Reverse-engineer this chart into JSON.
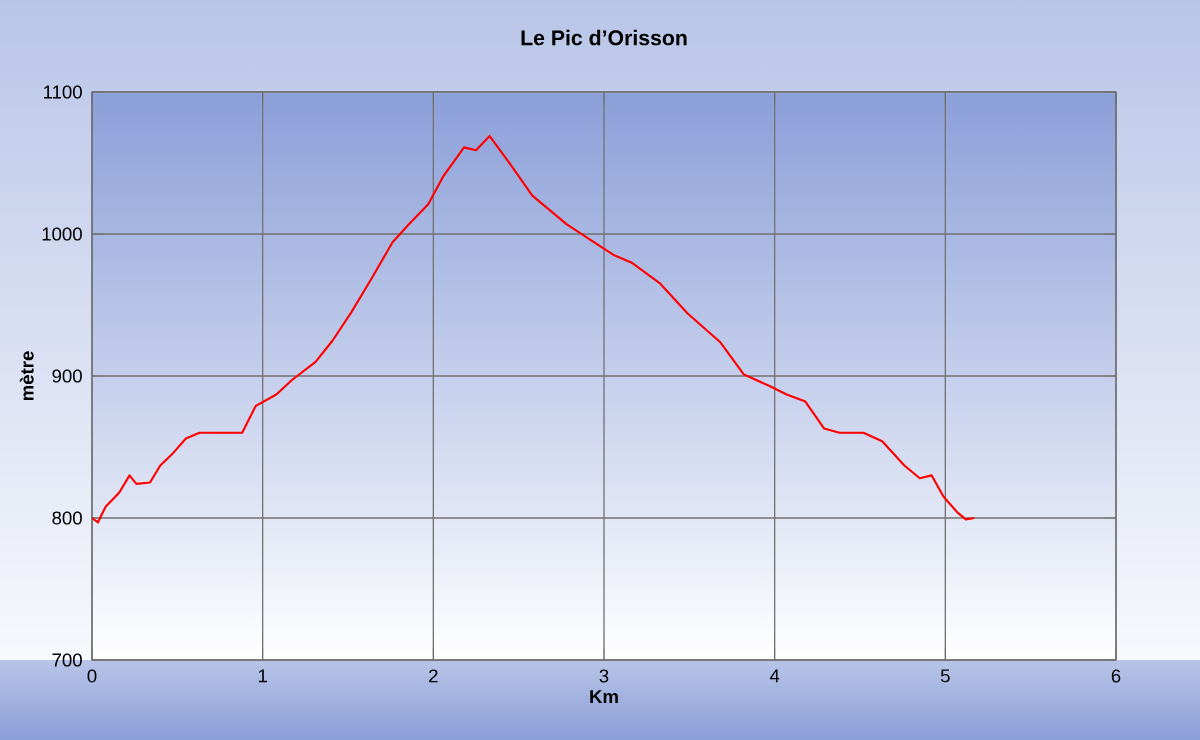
{
  "chart_data": {
    "type": "line",
    "title": "Le Pic d’Orisson",
    "xlabel": "Km",
    "ylabel": "mètre",
    "xlim": [
      0,
      6
    ],
    "xticks": [
      0,
      1,
      2,
      3,
      4,
      5,
      6
    ],
    "ylim": [
      700,
      1100
    ],
    "yticks": [
      700,
      800,
      900,
      1000,
      1100
    ],
    "grid": true,
    "marker": "none",
    "line_style": "solid",
    "series": [
      {
        "color": "#ff0000",
        "x": [
          0,
          0.035,
          0.08,
          0.16,
          0.22,
          0.26,
          0.34,
          0.4,
          0.47,
          0.55,
          0.63,
          0.88,
          0.96,
          1.08,
          1.17,
          1.31,
          1.41,
          1.52,
          1.64,
          1.76,
          1.85,
          1.97,
          2.06,
          2.18,
          2.25,
          2.33,
          2.44,
          2.58,
          2.71,
          2.78,
          2.97,
          3.06,
          3.16,
          3.33,
          3.49,
          3.68,
          3.82,
          3.97,
          4.07,
          4.18,
          4.29,
          4.38,
          4.52,
          4.63,
          4.76,
          4.85,
          4.92,
          4.99,
          5.07,
          5.12,
          5.17
        ],
        "values": [
          800,
          797,
          808,
          818,
          830,
          824,
          825,
          837,
          845,
          856,
          860,
          860,
          879,
          887,
          897,
          910,
          925,
          945,
          969,
          994,
          1006,
          1021,
          1041,
          1061,
          1059,
          1069,
          1051,
          1027,
          1014,
          1007,
          992,
          985,
          980,
          965,
          944,
          924,
          901,
          893,
          887,
          882,
          863,
          860,
          860,
          854,
          837,
          828,
          830,
          815,
          804,
          799,
          800
        ]
      }
    ]
  }
}
